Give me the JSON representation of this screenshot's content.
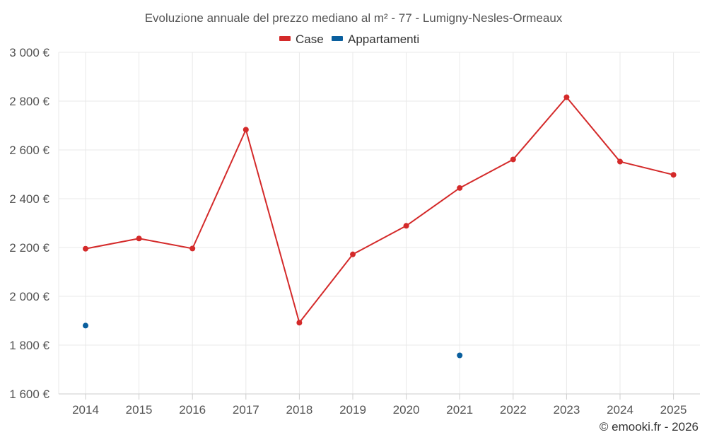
{
  "chart_data": {
    "type": "line",
    "title": "Evoluzione annuale del prezzo mediano al m² - 77 - Lumigny-Nesles-Ormeaux",
    "x": [
      "2014",
      "2015",
      "2016",
      "2017",
      "2018",
      "2019",
      "2020",
      "2021",
      "2022",
      "2023",
      "2024",
      "2025"
    ],
    "ylim": [
      1600,
      3000
    ],
    "yticks": [
      1600,
      1800,
      2000,
      2200,
      2400,
      2600,
      2800,
      3000
    ],
    "ytick_labels": [
      "1 600 €",
      "1 800 €",
      "2 000 €",
      "2 200 €",
      "2 400 €",
      "2 600 €",
      "2 800 €",
      "3 000 €"
    ],
    "grid": true,
    "legend_position": "top-center",
    "series": [
      {
        "name": "Case",
        "color": "#d42a2a",
        "values": [
          2195,
          2237,
          2196,
          2683,
          1892,
          2172,
          2289,
          2444,
          2561,
          2816,
          2552,
          2498
        ]
      },
      {
        "name": "Appartamenti",
        "color": "#0a5f9e",
        "values": [
          1880,
          null,
          null,
          null,
          null,
          null,
          null,
          1758,
          null,
          null,
          null,
          null
        ]
      }
    ]
  },
  "credit": "© emooki.fr - 2026"
}
